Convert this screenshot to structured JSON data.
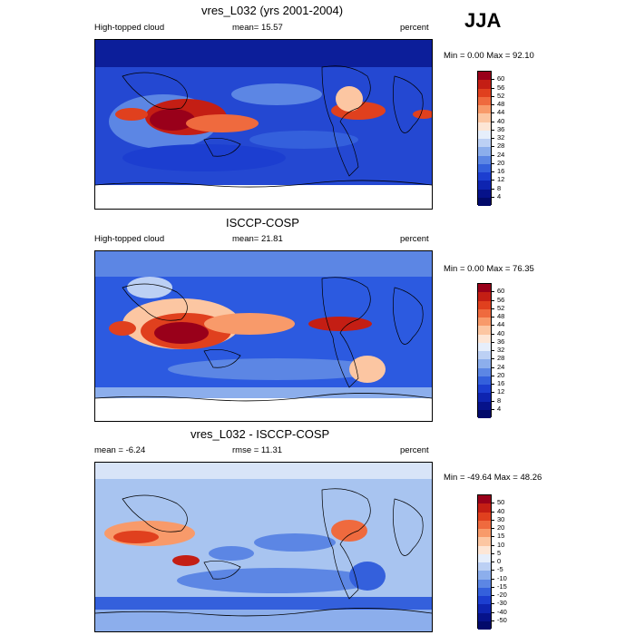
{
  "season": "JJA",
  "panels": [
    {
      "title": "vres_L032 (yrs 2001-2004)",
      "left_label": "High-topped cloud",
      "center_label": "mean=  15.57",
      "units": "percent",
      "range_text": "Min =   0.00 Max =  92.10",
      "levels": [
        "60",
        "56",
        "52",
        "48",
        "44",
        "40",
        "36",
        "32",
        "28",
        "24",
        "20",
        "16",
        "12",
        "8",
        "4"
      ],
      "colors": [
        "#99001a",
        "#c41e14",
        "#e0401e",
        "#ef6a3e",
        "#f89a6a",
        "#fcc6a2",
        "#fde6d6",
        "#e6eefb",
        "#bcd0f4",
        "#8caeec",
        "#5c86e4",
        "#3460dc",
        "#1c3ed0",
        "#0e24b0",
        "#06128a",
        "#020a6a"
      ],
      "map_fill": "#2a52d8"
    },
    {
      "title": "ISCCP-COSP",
      "left_label": "High-topped cloud",
      "center_label": "mean=  21.81",
      "units": "percent",
      "range_text": "Min =   0.00 Max =  76.35",
      "levels": [
        "60",
        "56",
        "52",
        "48",
        "44",
        "40",
        "36",
        "32",
        "28",
        "24",
        "20",
        "16",
        "12",
        "8",
        "4"
      ],
      "colors": [
        "#99001a",
        "#c41e14",
        "#e0401e",
        "#ef6a3e",
        "#f89a6a",
        "#fcc6a2",
        "#fde6d6",
        "#e6eefb",
        "#bcd0f4",
        "#8caeec",
        "#5c86e4",
        "#3460dc",
        "#1c3ed0",
        "#0e24b0",
        "#06128a",
        "#020a6a"
      ],
      "map_fill": "#3a64dc"
    },
    {
      "title": "vres_L032 - ISCCP-COSP",
      "left_label": "mean =  -6.24",
      "center_label": "rmse =  11.31",
      "units": "percent",
      "range_text": "Min = -49.64 Max =  48.26",
      "levels": [
        "50",
        "40",
        "30",
        "20",
        "15",
        "10",
        "5",
        "0",
        "-5",
        "-10",
        "-15",
        "-20",
        "-30",
        "-40",
        "-50"
      ],
      "colors": [
        "#99001a",
        "#c41e14",
        "#e0401e",
        "#ef6a3e",
        "#f89a6a",
        "#fcc6a2",
        "#fde6d6",
        "#e6eefb",
        "#bcd0f4",
        "#8caeec",
        "#5c86e4",
        "#3460dc",
        "#1c3ed0",
        "#0e24b0",
        "#06128a",
        "#020a6a"
      ],
      "map_fill": "#a8c4f0"
    }
  ]
}
